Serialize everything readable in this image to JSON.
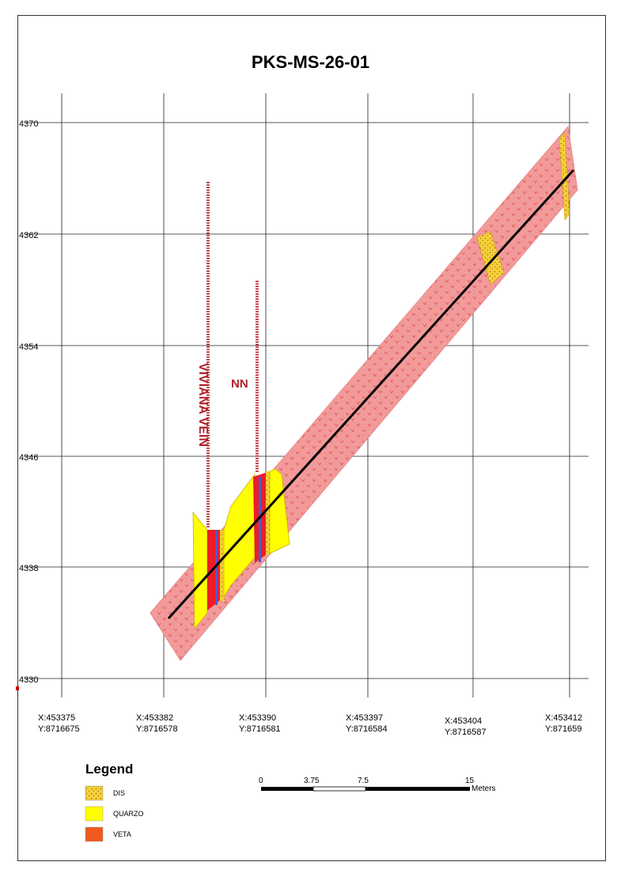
{
  "title": "PKS-MS-26-01",
  "y_ticks": [
    "4370",
    "4362",
    "4354",
    "4346",
    "4338",
    "4330"
  ],
  "x_ticks": [
    {
      "x": "X:453375",
      "y": "Y:8716675"
    },
    {
      "x": "X:453382",
      "y": "Y:8716578"
    },
    {
      "x": "X:453390",
      "y": "Y:8716581"
    },
    {
      "x": "X:453397",
      "y": "Y:8716584"
    },
    {
      "x": "X:453404",
      "y": "Y:8716587"
    },
    {
      "x": "X:453412",
      "y": "Y:871659"
    }
  ],
  "labels": {
    "vein_1": "VIVIANA VEIN",
    "vein_2": "NN"
  },
  "legend": {
    "title": "Legend",
    "items": [
      {
        "label": "DIS",
        "color": "#f5d13a"
      },
      {
        "label": "QUARZO",
        "color": "#ffff00"
      },
      {
        "label": "VETA",
        "color": "#f05a1e"
      }
    ]
  },
  "scale_bar": {
    "ticks": [
      "0",
      "3.75",
      "7.5",
      "15"
    ],
    "unit": "Meters"
  },
  "colors": {
    "corridor": "#f29a9a",
    "veta": "#ee1c24",
    "quarzo": "#ffff00",
    "dis": "#f5d13a",
    "vein_line": "#b0222a",
    "drill_trace": "#000000"
  }
}
